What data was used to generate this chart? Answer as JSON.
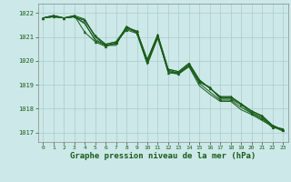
{
  "background_color": "#cce8e8",
  "grid_color": "#aacccc",
  "line_color": "#1a5c1a",
  "marker_color": "#1a5c1a",
  "xlabel": "Graphe pression niveau de la mer (hPa)",
  "xlabel_fontsize": 6.5,
  "ylim": [
    1016.6,
    1022.4
  ],
  "xlim": [
    -0.5,
    23.5
  ],
  "yticks": [
    1017,
    1018,
    1019,
    1020,
    1021,
    1022
  ],
  "xticks": [
    0,
    1,
    2,
    3,
    4,
    5,
    6,
    7,
    8,
    9,
    10,
    11,
    12,
    13,
    14,
    15,
    16,
    17,
    18,
    19,
    20,
    21,
    22,
    23
  ],
  "series": [
    [
      1021.8,
      1021.85,
      1021.8,
      1021.9,
      1021.75,
      1021.0,
      1020.65,
      1020.75,
      1021.35,
      1021.2,
      1019.95,
      1021.05,
      1019.55,
      1019.5,
      1019.85,
      1019.15,
      1018.85,
      1018.45,
      1018.45,
      1018.2,
      1017.85,
      1017.65,
      1017.25,
      1017.15
    ],
    [
      1021.8,
      1021.85,
      1021.8,
      1021.85,
      1021.6,
      1020.85,
      1020.65,
      1020.65,
      1021.45,
      1021.15,
      1019.85,
      1020.95,
      1019.55,
      1019.45,
      1019.75,
      1018.95,
      1018.6,
      1018.3,
      1018.3,
      1017.95,
      1017.75,
      1017.5,
      1017.25,
      1017.05
    ],
    [
      1021.8,
      1021.9,
      1021.8,
      1021.85,
      1021.7,
      1021.05,
      1020.7,
      1020.8,
      1021.4,
      1021.25,
      1020.05,
      1021.1,
      1019.65,
      1019.55,
      1019.9,
      1019.2,
      1018.85,
      1018.5,
      1018.5,
      1018.2,
      1017.9,
      1017.7,
      1017.3,
      1017.1
    ],
    [
      1021.8,
      1021.9,
      1021.8,
      1021.85,
      1021.55,
      1020.9,
      1020.65,
      1020.7,
      1021.45,
      1021.2,
      1019.9,
      1021.0,
      1019.6,
      1019.5,
      1019.8,
      1019.05,
      1018.7,
      1018.35,
      1018.35,
      1018.05,
      1017.8,
      1017.55,
      1017.3,
      1017.1
    ]
  ],
  "series_with_markers": [
    [
      1021.8,
      1021.9,
      1021.8,
      1021.85,
      1021.7,
      1021.05,
      1020.7,
      1020.8,
      1021.4,
      1021.25,
      1020.05,
      1021.1,
      1019.65,
      1019.55,
      1019.9,
      1019.2,
      1018.85,
      1018.5,
      1018.5,
      1018.2,
      1017.9,
      1017.7,
      1017.3,
      1017.1
    ],
    [
      1021.8,
      1021.85,
      1021.8,
      1021.9,
      1021.2,
      1020.8,
      1020.6,
      1020.75,
      1021.3,
      1021.15,
      1019.95,
      1021.05,
      1019.5,
      1019.45,
      1019.8,
      1019.1,
      1018.9,
      1018.4,
      1018.4,
      1018.15,
      1017.8,
      1017.6,
      1017.2,
      1017.15
    ]
  ]
}
